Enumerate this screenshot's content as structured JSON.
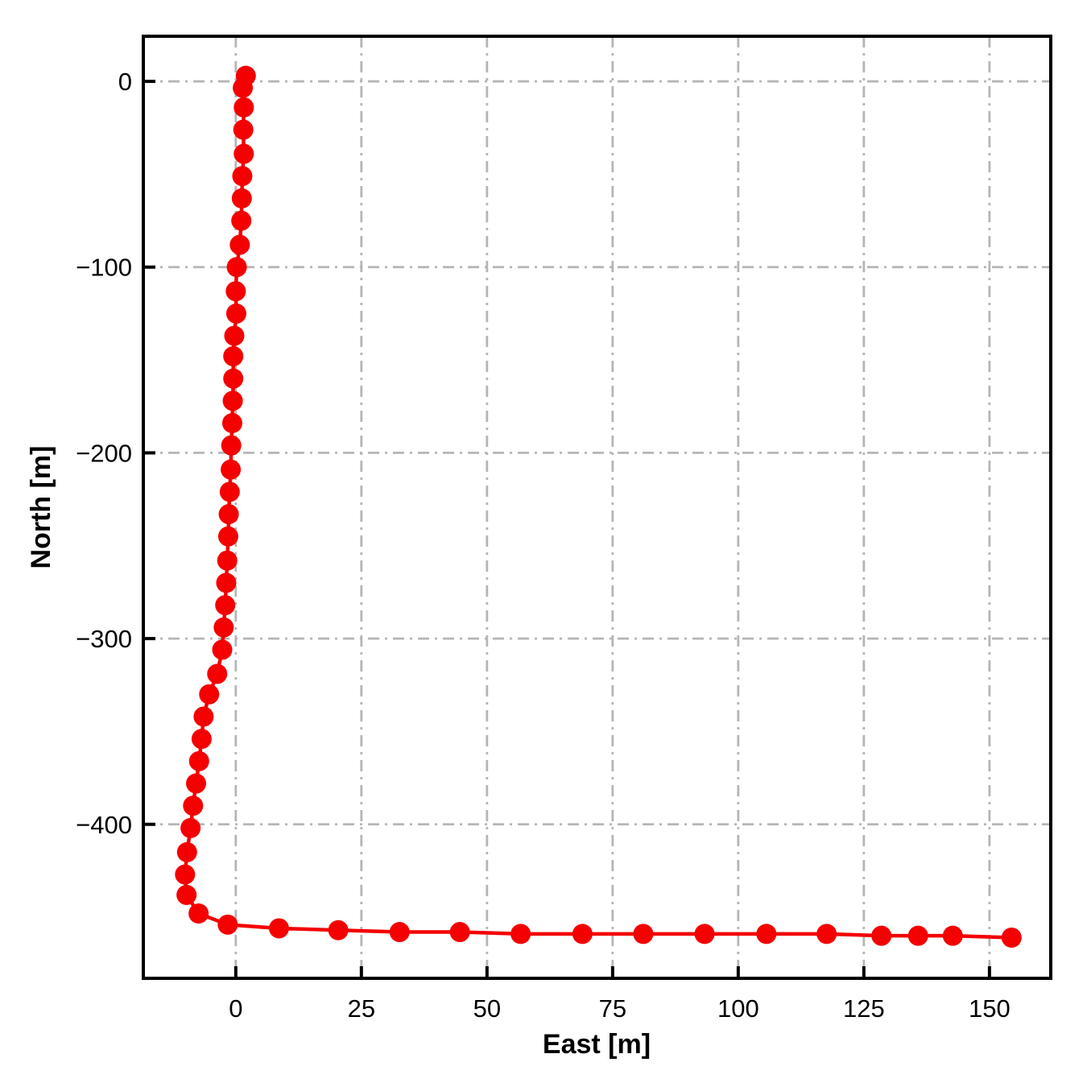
{
  "chart_data": {
    "type": "line",
    "title": "",
    "xlabel": "East [m]",
    "ylabel": "North [m]",
    "xlim": [
      -18.4,
      162.2
    ],
    "ylim": [
      -482.9,
      24.3
    ],
    "xticks": [
      {
        "v": 0,
        "label": "0"
      },
      {
        "v": 25,
        "label": "25"
      },
      {
        "v": 50,
        "label": "50"
      },
      {
        "v": 75,
        "label": "75"
      },
      {
        "v": 100,
        "label": "100"
      },
      {
        "v": 125,
        "label": "125"
      },
      {
        "v": 150,
        "label": "150"
      }
    ],
    "yticks": [
      {
        "v": 0,
        "label": "0"
      },
      {
        "v": -100,
        "label": "−100"
      },
      {
        "v": -200,
        "label": "−200"
      },
      {
        "v": -300,
        "label": "−300"
      },
      {
        "v": -400,
        "label": "−400"
      }
    ],
    "grid": {
      "on": true,
      "style": "dash-dot",
      "color": "#b5b5b5",
      "line_width": 2.8
    },
    "frame_color": "#000000",
    "frame_width": 4,
    "tick_direction": "in",
    "tick_length": 15,
    "legend": null,
    "series": [
      {
        "name": "trajectory",
        "color": "#f40000",
        "line_width": 4.5,
        "marker": "circle",
        "marker_radius_px": 12.5,
        "points": [
          [
            2.0,
            3
          ],
          [
            1.4,
            -3.5
          ],
          [
            1.6,
            -14
          ],
          [
            1.5,
            -26
          ],
          [
            1.6,
            -39
          ],
          [
            1.3,
            -51
          ],
          [
            1.2,
            -63
          ],
          [
            1.1,
            -75
          ],
          [
            0.8,
            -88
          ],
          [
            0.2,
            -100
          ],
          [
            0.0,
            -113
          ],
          [
            0.1,
            -125
          ],
          [
            -0.3,
            -137
          ],
          [
            -0.5,
            -148
          ],
          [
            -0.5,
            -160
          ],
          [
            -0.6,
            -172
          ],
          [
            -0.7,
            -184
          ],
          [
            -0.9,
            -196
          ],
          [
            -1.0,
            -209
          ],
          [
            -1.2,
            -221
          ],
          [
            -1.4,
            -233
          ],
          [
            -1.5,
            -245
          ],
          [
            -1.7,
            -258
          ],
          [
            -1.9,
            -270
          ],
          [
            -2.1,
            -282
          ],
          [
            -2.4,
            -294
          ],
          [
            -2.7,
            -306
          ],
          [
            -3.7,
            -319
          ],
          [
            -5.3,
            -330
          ],
          [
            -6.4,
            -342
          ],
          [
            -6.8,
            -354
          ],
          [
            -7.3,
            -366
          ],
          [
            -7.9,
            -378
          ],
          [
            -8.5,
            -390
          ],
          [
            -9.0,
            -402
          ],
          [
            -9.7,
            -415
          ],
          [
            -10.1,
            -427
          ],
          [
            -9.8,
            -438
          ],
          [
            -7.4,
            -448
          ],
          [
            -1.6,
            -454
          ],
          [
            8.6,
            -456
          ],
          [
            20.4,
            -457
          ],
          [
            32.6,
            -458
          ],
          [
            44.6,
            -458
          ],
          [
            56.7,
            -459
          ],
          [
            69.0,
            -459
          ],
          [
            81.1,
            -459
          ],
          [
            93.3,
            -459
          ],
          [
            105.6,
            -459
          ],
          [
            117.6,
            -459
          ],
          [
            128.5,
            -460
          ],
          [
            135.8,
            -460
          ],
          [
            142.7,
            -460
          ],
          [
            154.4,
            -461
          ]
        ]
      }
    ]
  }
}
